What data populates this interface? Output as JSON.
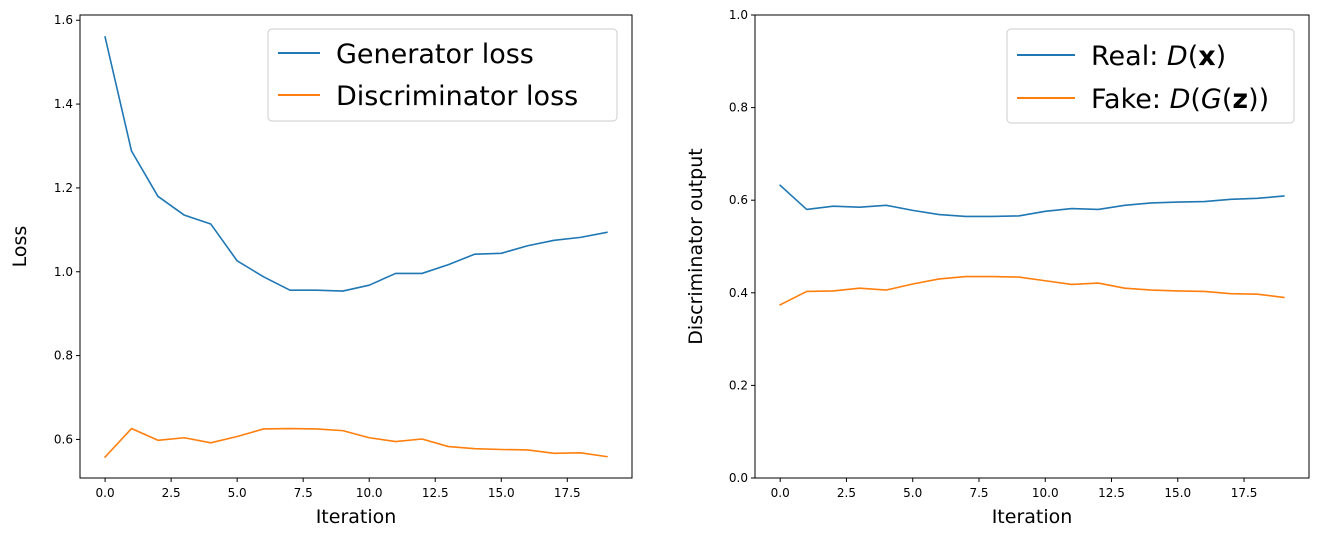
{
  "chart_data": [
    {
      "type": "line",
      "title": "",
      "xlabel": "Iteration",
      "ylabel": "Loss",
      "xlim": [
        -0.95,
        19.95
      ],
      "ylim": [
        0.508,
        1.6125
      ],
      "xticks": [
        0,
        2.5,
        5,
        7.5,
        10,
        12.5,
        15,
        17.5
      ],
      "xtick_labels": [
        "0.0",
        "2.5",
        "5.0",
        "7.5",
        "10.0",
        "12.5",
        "15.0",
        "17.5"
      ],
      "yticks": [
        0.6,
        0.8,
        1.0,
        1.2,
        1.4,
        1.6
      ],
      "ytick_labels": [
        "0.6",
        "0.8",
        "1.0",
        "1.2",
        "1.4",
        "1.6"
      ],
      "legend_position": "upper-right",
      "grid": false,
      "x": [
        0,
        1,
        2,
        3,
        4,
        5,
        6,
        7,
        8,
        9,
        10,
        11,
        12,
        13,
        14,
        15,
        16,
        17,
        18,
        19
      ],
      "series": [
        {
          "name": "Generator loss",
          "color": "#1f77b4",
          "values": [
            1.56,
            1.288,
            1.18,
            1.135,
            1.114,
            1.026,
            0.988,
            0.956,
            0.956,
            0.954,
            0.968,
            0.996,
            0.996,
            1.017,
            1.042,
            1.044,
            1.062,
            1.075,
            1.082,
            1.094
          ]
        },
        {
          "name": "Discriminator loss",
          "color": "#ff7f0e",
          "values": [
            0.558,
            0.626,
            0.598,
            0.604,
            0.592,
            0.607,
            0.625,
            0.626,
            0.625,
            0.621,
            0.604,
            0.595,
            0.601,
            0.583,
            0.578,
            0.576,
            0.575,
            0.567,
            0.568,
            0.559
          ]
        }
      ]
    },
    {
      "type": "line",
      "title": "",
      "xlabel": "Iteration",
      "ylabel": "Discriminator output",
      "xlim": [
        -0.95,
        19.95
      ],
      "ylim": [
        0,
        1.0
      ],
      "xticks": [
        0,
        2.5,
        5,
        7.5,
        10,
        12.5,
        15,
        17.5
      ],
      "xtick_labels": [
        "0.0",
        "2.5",
        "5.0",
        "7.5",
        "10.0",
        "12.5",
        "15.0",
        "17.5"
      ],
      "yticks": [
        0,
        0.2,
        0.4,
        0.6,
        0.8,
        1.0
      ],
      "ytick_labels": [
        "0.0",
        "0.2",
        "0.4",
        "0.6",
        "0.8",
        "1.0"
      ],
      "legend_position": "upper-right",
      "grid": false,
      "x": [
        0,
        1,
        2,
        3,
        4,
        5,
        6,
        7,
        8,
        9,
        10,
        11,
        12,
        13,
        14,
        15,
        16,
        17,
        18,
        19
      ],
      "series": [
        {
          "name": "Real: D(x)",
          "legend_parts": [
            "Real: ",
            "D",
            "(",
            "x",
            ")"
          ],
          "color": "#1f77b4",
          "values": [
            0.632,
            0.58,
            0.587,
            0.585,
            0.589,
            0.578,
            0.569,
            0.565,
            0.565,
            0.566,
            0.576,
            0.582,
            0.58,
            0.589,
            0.594,
            0.596,
            0.597,
            0.602,
            0.604,
            0.609
          ]
        },
        {
          "name": "Fake: D(G(z))",
          "legend_parts": [
            "Fake: ",
            "D",
            "(",
            "G",
            "(",
            "z",
            "))"
          ],
          "color": "#ff7f0e",
          "values": [
            0.374,
            0.403,
            0.404,
            0.41,
            0.406,
            0.419,
            0.43,
            0.435,
            0.435,
            0.434,
            0.426,
            0.418,
            0.421,
            0.41,
            0.406,
            0.404,
            0.403,
            0.398,
            0.397,
            0.39
          ]
        }
      ]
    }
  ]
}
